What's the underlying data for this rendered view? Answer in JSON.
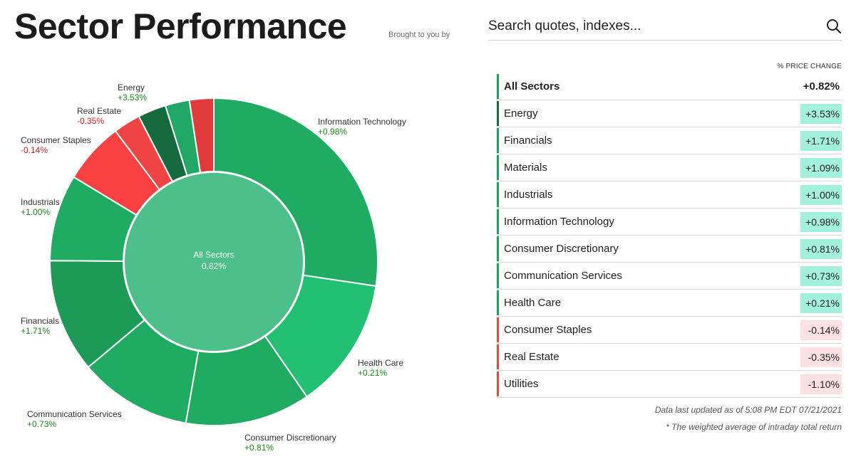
{
  "header": {
    "title": "Sector Performance",
    "brought_by": "Brought to you by"
  },
  "search": {
    "placeholder": "Search quotes, indexes..."
  },
  "colors": {
    "center": "#4dbf8a",
    "strong_green": "#1d9f5a",
    "dark_green": "#156b3d",
    "light_green": "#22c072",
    "red": "#f04444",
    "pos_badge": "#a3f0dc",
    "neg_badge": "#fde0e0",
    "pos_bar": "#1aa15b",
    "neg_bar": "#e24646"
  },
  "chart_data": {
    "type": "pie",
    "variant": "donut",
    "center_label": "All Sectors",
    "center_value": "0.82%",
    "slices": [
      {
        "name": "Information Technology",
        "label": "+0.98%",
        "value": 0.98,
        "weight": 27.5,
        "color": "#1fac62"
      },
      {
        "name": "Health Care",
        "label": "+0.21%",
        "value": 0.21,
        "weight": 13.1,
        "color": "#22c072"
      },
      {
        "name": "Consumer Discretionary",
        "label": "+0.81%",
        "value": 0.81,
        "weight": 12.4,
        "color": "#1fac62"
      },
      {
        "name": "Communication Services",
        "label": "+0.73%",
        "value": 0.73,
        "weight": 11.2,
        "color": "#1fac62"
      },
      {
        "name": "Financials",
        "label": "+1.71%",
        "value": 1.71,
        "weight": 11.3,
        "color": "#1d9a56"
      },
      {
        "name": "Industrials",
        "label": "+1.00%",
        "value": 1.0,
        "weight": 8.6,
        "color": "#1fac62"
      },
      {
        "name": "Consumer Staples",
        "label": "-0.14%",
        "value": -0.14,
        "weight": 6.1,
        "color": "#fa4141"
      },
      {
        "name": "Real Estate",
        "label": "-0.35%",
        "value": -0.35,
        "weight": 2.7,
        "color": "#f04444"
      },
      {
        "name": "Energy",
        "label": "+3.53%",
        "value": 3.53,
        "weight": 2.8,
        "color": "#156b3d"
      },
      {
        "name": "Materials",
        "label": "+1.09%",
        "value": 1.09,
        "weight": 2.4,
        "color": "#21a866"
      },
      {
        "name": "Utilities",
        "label": "-1.10%",
        "value": -1.1,
        "weight": 2.4,
        "color": "#e03a3a"
      }
    ]
  },
  "table": {
    "header": "% PRICE CHANGE",
    "rows": [
      {
        "name": "All Sectors",
        "value": "+0.82%",
        "dir": "all"
      },
      {
        "name": "Energy",
        "value": "+3.53%",
        "dir": "pos-strong"
      },
      {
        "name": "Financials",
        "value": "+1.71%",
        "dir": "pos"
      },
      {
        "name": "Materials",
        "value": "+1.09%",
        "dir": "pos"
      },
      {
        "name": "Industrials",
        "value": "+1.00%",
        "dir": "pos"
      },
      {
        "name": "Information Technology",
        "value": "+0.98%",
        "dir": "pos"
      },
      {
        "name": "Consumer Discretionary",
        "value": "+0.81%",
        "dir": "pos"
      },
      {
        "name": "Communication Services",
        "value": "+0.73%",
        "dir": "pos"
      },
      {
        "name": "Health Care",
        "value": "+0.21%",
        "dir": "pos"
      },
      {
        "name": "Consumer Staples",
        "value": "-0.14%",
        "dir": "neg"
      },
      {
        "name": "Real Estate",
        "value": "-0.35%",
        "dir": "neg"
      },
      {
        "name": "Utilities",
        "value": "-1.10%",
        "dir": "neg"
      }
    ]
  },
  "footer": {
    "updated": "Data last updated as of 5:08 PM EDT 07/21/2021",
    "note": "* The weighted average of intraday total return"
  }
}
